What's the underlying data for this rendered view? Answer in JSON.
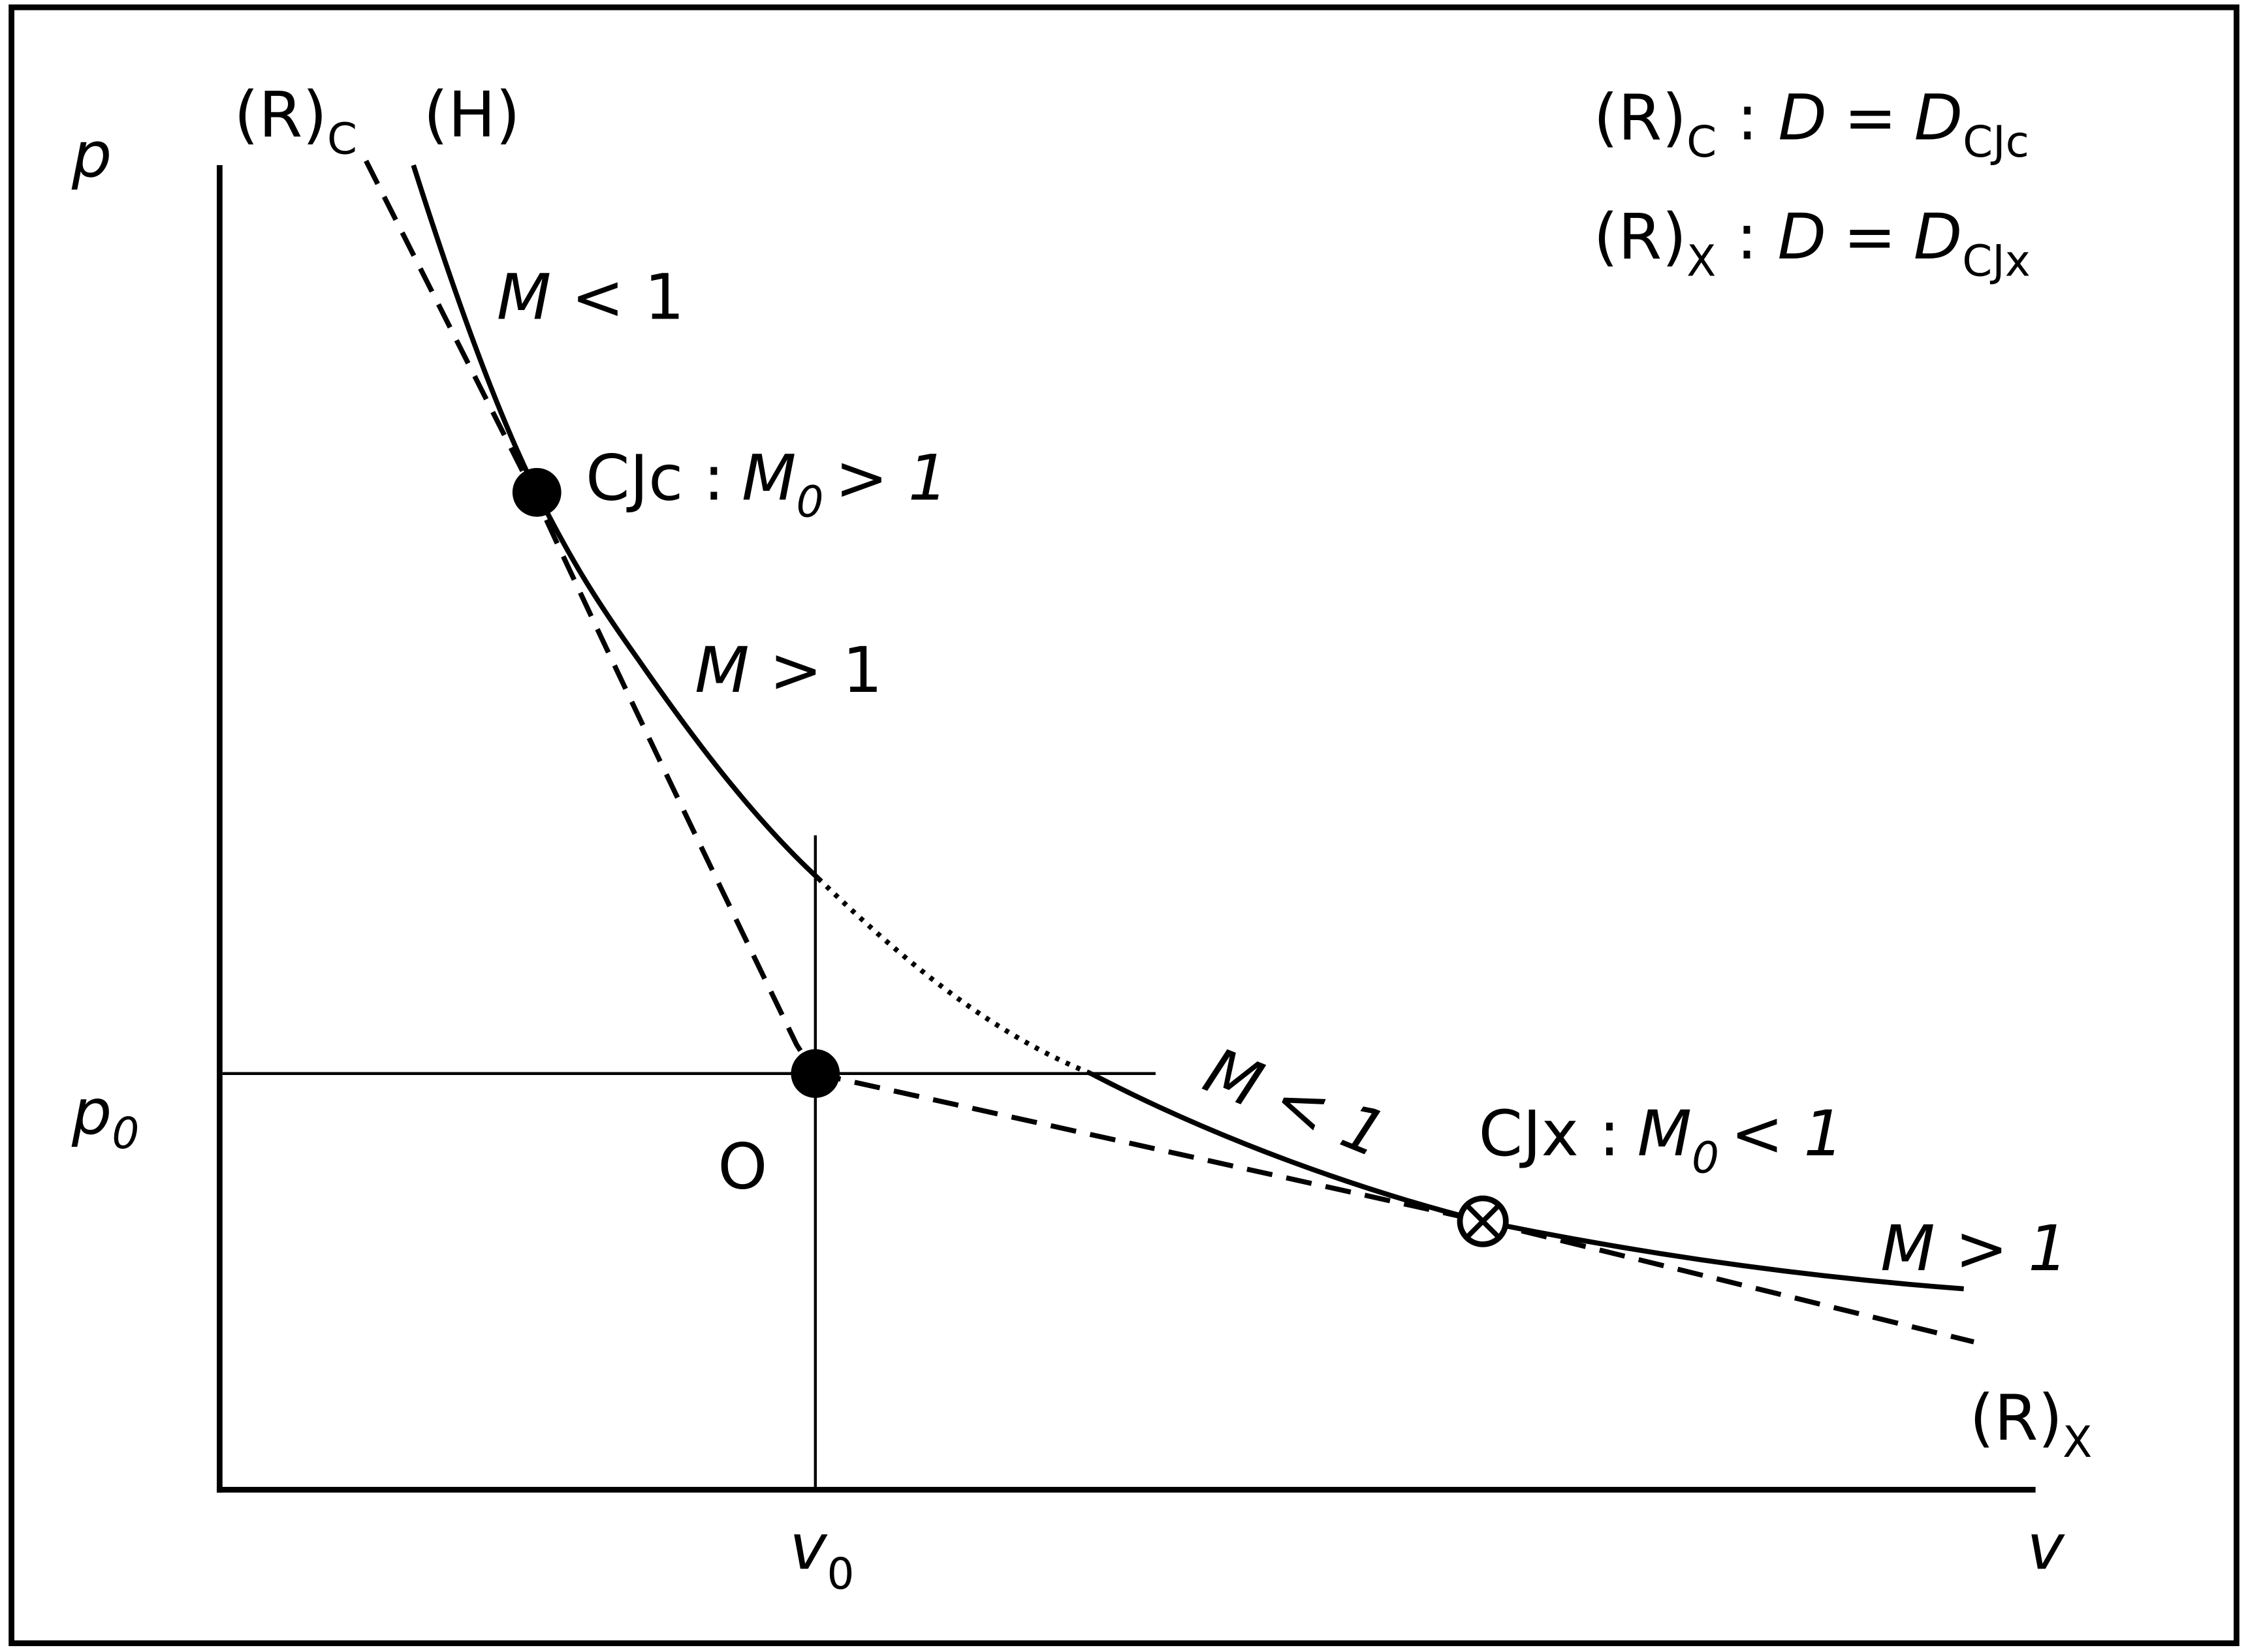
{
  "axes": {
    "y_label": "p",
    "x_label": "v",
    "p0": {
      "main": "p",
      "sub": "0"
    },
    "v0": {
      "main": "v",
      "sub": "0"
    }
  },
  "curve_labels": {
    "rc": {
      "main": "(R)",
      "sub": "C"
    },
    "h": "(H)",
    "rx": {
      "main": "(R)",
      "sub": "X"
    }
  },
  "legend": [
    {
      "curve": "(R)",
      "curve_sub": "C",
      "sep": ":",
      "lhs": "D",
      "eq": "=",
      "rhs": "D",
      "rhs_sub": "CJc"
    },
    {
      "curve": "(R)",
      "curve_sub": "X",
      "sep": ":",
      "lhs": "D",
      "eq": "=",
      "rhs": "D",
      "rhs_sub": "CJx"
    }
  ],
  "regions": [
    {
      "m": "M",
      "rel": "< 1"
    },
    {
      "m": "M",
      "rel": "> 1"
    },
    {
      "m": "M",
      "rel": "< 1"
    },
    {
      "m": "M",
      "rel": "> 1"
    }
  ],
  "points": {
    "cjc": {
      "name": "CJc :",
      "m": "M",
      "sub": "0",
      "rel": "> 1"
    },
    "o": "O",
    "cjx": {
      "name": "CJx :",
      "m": "M",
      "sub": "0",
      "rel": "< 1"
    }
  }
}
